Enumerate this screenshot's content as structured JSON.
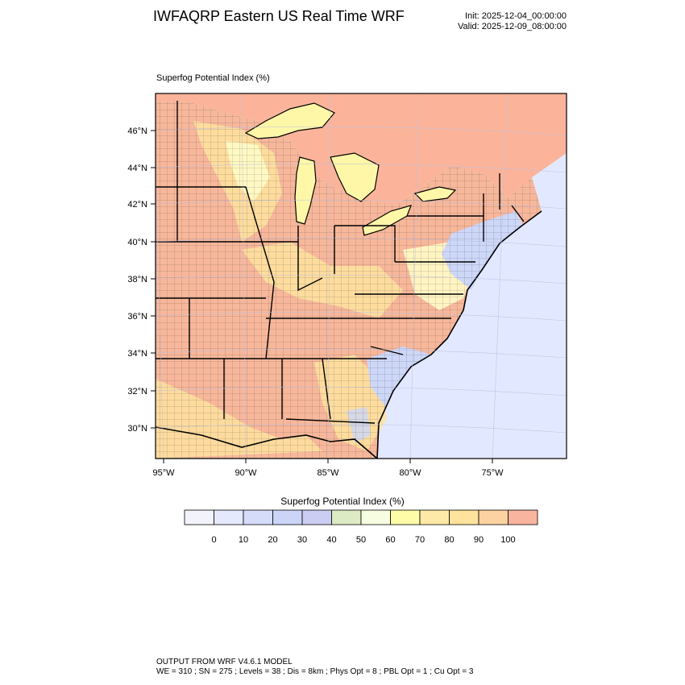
{
  "header": {
    "title": "IWFAQRP Eastern US Real Time WRF",
    "init": "Init: 2025-12-04_00:00:00",
    "valid": "Valid: 2025-12-09_08:00:00"
  },
  "map": {
    "field_label": "Superfog Potential Index   (%)",
    "lat_labels": [
      "46°N",
      "44°N",
      "42°N",
      "40°N",
      "38°N",
      "36°N",
      "34°N",
      "32°N",
      "30°N"
    ],
    "lon_labels": [
      "95°W",
      "90°W",
      "85°W",
      "80°W",
      "75°W"
    ],
    "colors": {
      "ocean": "#e2e8ff",
      "land_high": "#f7b79b",
      "land_mid": "#fee39f",
      "land_low": "#fffbc6",
      "canada": "#fbb49a",
      "lakes": "#fff7a8",
      "coastal_low": "#cdd7f7"
    }
  },
  "colorbar": {
    "title": "Superfog Potential Index  (%)",
    "labels": [
      "0",
      "10",
      "20",
      "30",
      "40",
      "50",
      "60",
      "70",
      "80",
      "90",
      "100"
    ],
    "colors": [
      "#f3f4fb",
      "#e5e9fd",
      "#d5dcfa",
      "#ccd4f8",
      "#cbcdf3",
      "#dcebc4",
      "#f6fde0",
      "#fefca6",
      "#feeaa8",
      "#fde39c",
      "#fcd3a0",
      "#f9b4a0"
    ]
  },
  "footer": {
    "line1": "OUTPUT FROM WRF V4.6.1 MODEL",
    "line2": "WE = 310 ; SN = 275 ; Levels = 38 ; Dis = 8km ; Phys Opt = 8 ; PBL Opt = 1 ; Cu Opt = 3"
  }
}
